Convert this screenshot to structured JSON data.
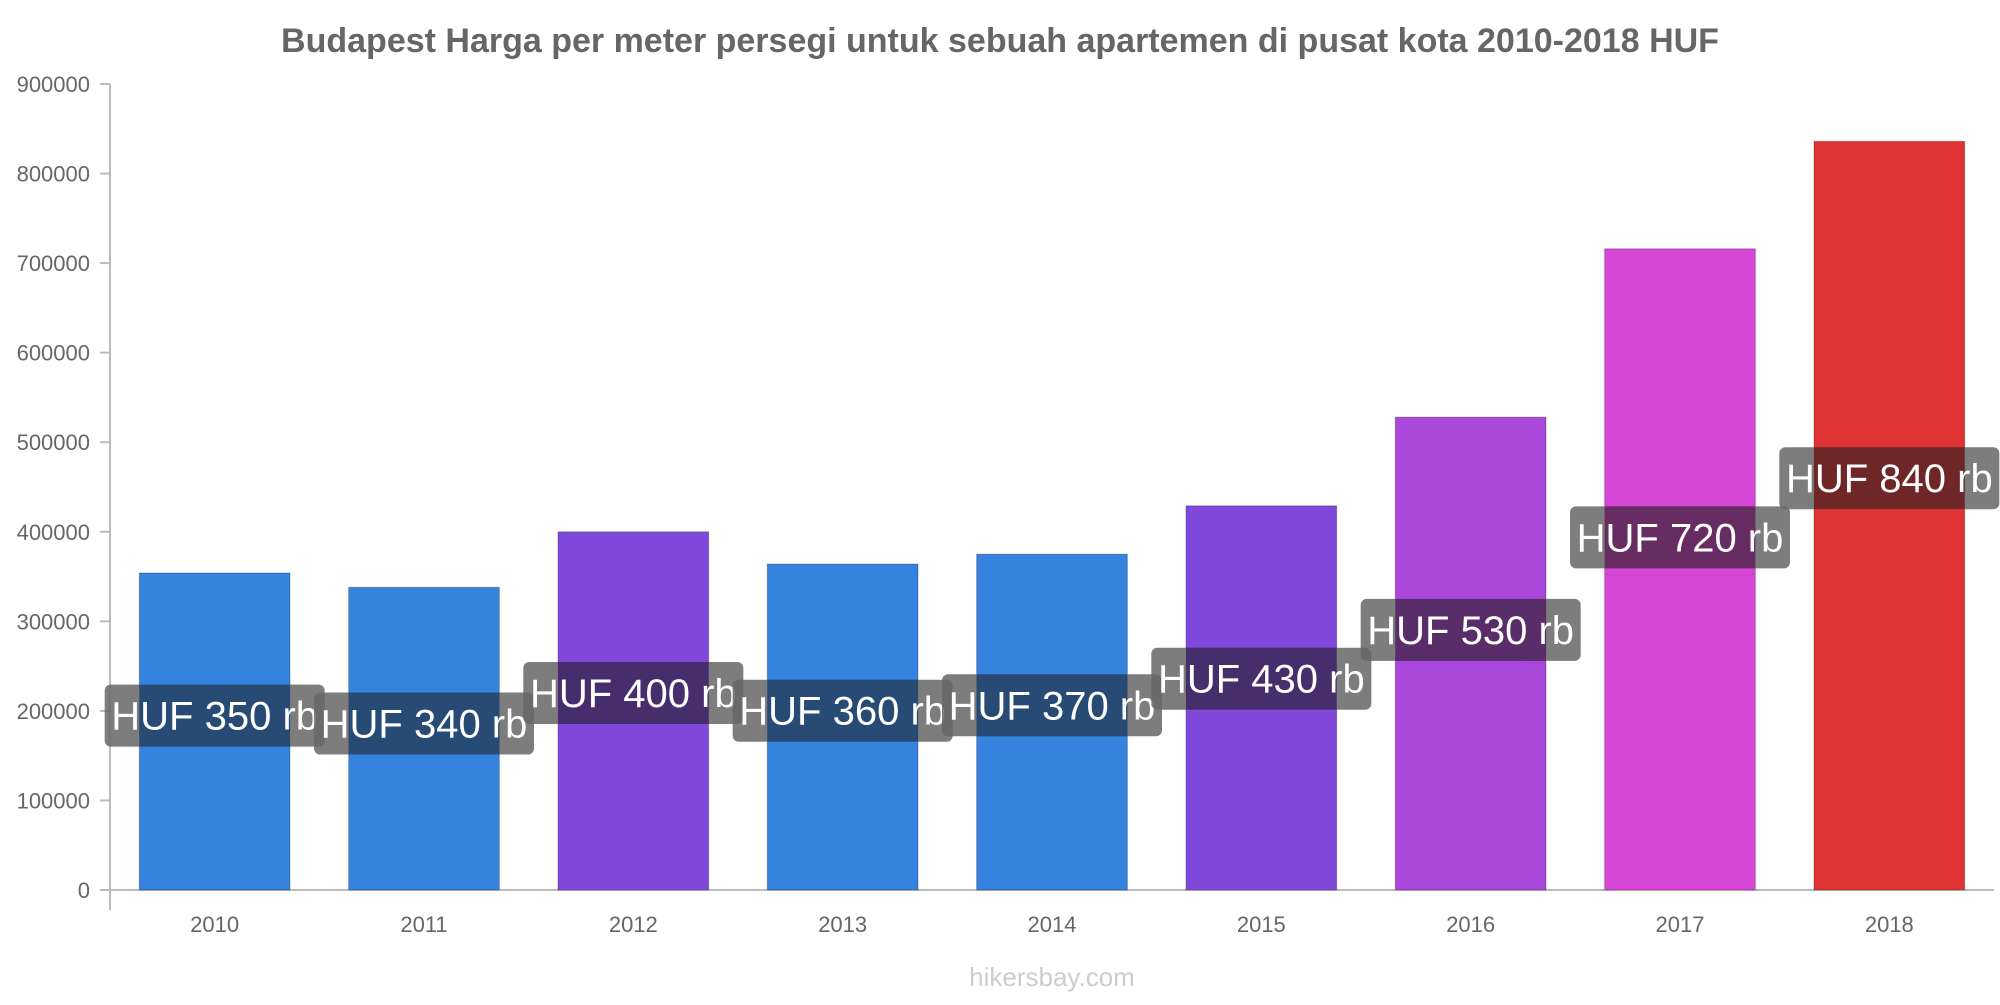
{
  "chart_data": {
    "type": "bar",
    "title": "Budapest Harga per meter persegi untuk sebuah apartemen di pusat kota 2010-2018 HUF",
    "xlabel": "",
    "ylabel": "",
    "categories": [
      "2010",
      "2011",
      "2012",
      "2013",
      "2014",
      "2015",
      "2016",
      "2017",
      "2018"
    ],
    "values": [
      354000,
      338000,
      400000,
      364000,
      375000,
      429000,
      528000,
      716000,
      836000
    ],
    "data_labels": [
      "HUF 350 rb",
      "HUF 340 rb",
      "HUF 400 rb",
      "HUF 360 rb",
      "HUF 370 rb",
      "HUF 430 rb",
      "HUF 530 rb",
      "HUF 720 rb",
      "HUF 840 rb"
    ],
    "bar_colors": [
      "#3583df",
      "#3583df",
      "#8149db",
      "#3583df",
      "#3583df",
      "#8149db",
      "#a847d9",
      "#d646d4",
      "#e03434"
    ],
    "label_overlay_colors": [
      "#1e4575",
      "#1e4575",
      "#3f2568",
      "#1e4575",
      "#1e4575",
      "#3f2568",
      "#552466",
      "#64245f",
      "#6c1c1c"
    ],
    "ylim": [
      0,
      900000
    ],
    "yticks": [
      "0",
      "100000",
      "200000",
      "300000",
      "400000",
      "500000",
      "600000",
      "700000",
      "800000",
      "900000"
    ],
    "grid": false,
    "legend": "none"
  },
  "watermark": "hikersbay.com",
  "colors": {
    "title": "#666666",
    "tick_text": "#666666",
    "axis_line": "#bbbbbb",
    "label_box": "#666666",
    "label_text": "#ffffff",
    "watermark": "#cccccc"
  }
}
